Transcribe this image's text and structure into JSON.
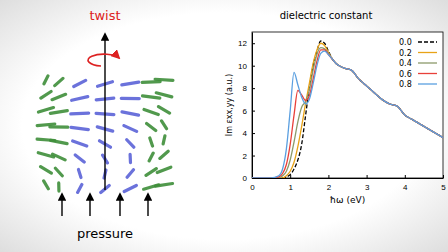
{
  "chart_data": {
    "type": "line",
    "title": "dielectric constant",
    "x_label": "ħω (eV)",
    "y_label": "Im εxx,yy (a.u.)",
    "x": [
      0,
      0.5,
      0.7,
      0.8,
      0.9,
      1.0,
      1.1,
      1.2,
      1.3,
      1.4,
      1.5,
      1.6,
      1.7,
      1.8,
      1.9,
      2.0,
      2.1,
      2.2,
      2.4,
      2.6,
      2.8,
      3.0,
      3.2,
      3.4,
      3.6,
      3.8,
      4.0,
      4.2,
      4.4,
      4.6,
      4.8,
      5.0
    ],
    "series": [
      {
        "name": "0.0",
        "color": "#000000",
        "line_style": "dashed",
        "values": [
          0,
          0,
          0,
          0,
          0.1,
          0.3,
          0.8,
          1.6,
          3.0,
          5.5,
          8.0,
          10.0,
          11.3,
          12.2,
          12.0,
          11.3,
          10.6,
          10.2,
          9.8,
          9.6,
          8.8,
          8.2,
          7.6,
          7.0,
          6.6,
          6.4,
          5.6,
          5.2,
          4.8,
          4.4,
          4.0,
          3.6
        ]
      },
      {
        "name": "0.2",
        "color": "#e8a317",
        "line_style": "solid",
        "values": [
          0,
          0,
          0,
          0,
          0.2,
          0.6,
          1.4,
          2.8,
          4.6,
          6.6,
          8.4,
          10.2,
          11.4,
          12.0,
          11.8,
          11.2,
          10.6,
          10.2,
          9.8,
          9.6,
          8.8,
          8.2,
          7.6,
          7.0,
          6.6,
          6.4,
          5.6,
          5.2,
          4.8,
          4.4,
          4.0,
          3.6
        ]
      },
      {
        "name": "0.4",
        "color": "#8c9a6a",
        "line_style": "solid",
        "values": [
          0,
          0,
          0,
          0.2,
          0.6,
          1.6,
          3.2,
          5.0,
          6.3,
          6.8,
          7.8,
          9.6,
          11.0,
          11.6,
          11.5,
          11.1,
          10.6,
          10.2,
          9.8,
          9.6,
          8.8,
          8.2,
          7.6,
          7.0,
          6.6,
          6.4,
          5.6,
          5.2,
          4.8,
          4.4,
          4.0,
          3.6
        ]
      },
      {
        "name": "0.6",
        "color": "#e8403a",
        "line_style": "solid",
        "values": [
          0,
          0,
          0.1,
          0.4,
          1.2,
          3.0,
          5.6,
          7.8,
          7.4,
          6.9,
          7.3,
          8.8,
          10.4,
          11.4,
          11.4,
          11.0,
          10.6,
          10.2,
          9.8,
          9.6,
          8.8,
          8.2,
          7.6,
          7.0,
          6.6,
          6.4,
          5.6,
          5.2,
          4.8,
          4.4,
          4.0,
          3.6
        ]
      },
      {
        "name": "0.8",
        "color": "#5a9fe0",
        "line_style": "solid",
        "values": [
          0,
          0,
          0.2,
          0.8,
          2.6,
          6.0,
          9.4,
          8.3,
          7.2,
          6.6,
          7.0,
          8.4,
          10.0,
          11.1,
          11.3,
          11.0,
          10.6,
          10.2,
          9.8,
          9.6,
          8.8,
          8.2,
          7.6,
          7.0,
          6.6,
          6.4,
          5.6,
          5.2,
          4.8,
          4.4,
          4.0,
          3.6
        ]
      }
    ],
    "xlim": [
      0,
      5
    ],
    "xticks": [
      0,
      1,
      2,
      3,
      4,
      5
    ],
    "ylim": [
      0,
      13
    ],
    "yticks": [
      0,
      2,
      4,
      6,
      8,
      10,
      12
    ],
    "legend": "upper right"
  },
  "diagram": {
    "twist_label": "twist",
    "pressure_label": "pressure"
  }
}
